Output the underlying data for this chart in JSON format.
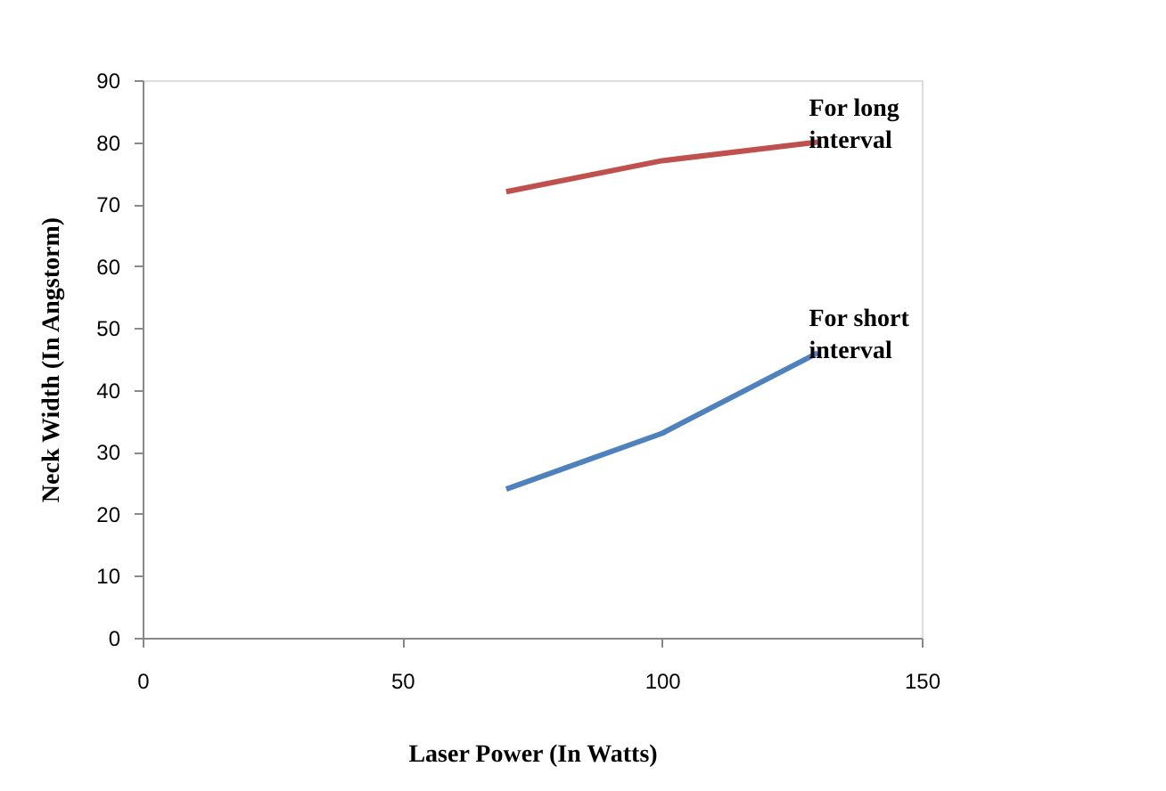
{
  "chart_data": {
    "type": "line",
    "xlabel": "Laser Power (In Watts)",
    "ylabel": "Neck Width (In Angstorm)",
    "series": [
      {
        "name": "For long interval",
        "color": "#c0504d",
        "x": [
          70,
          100,
          130
        ],
        "values": [
          72,
          77,
          80
        ]
      },
      {
        "name": "For short interval",
        "color": "#4f81bd",
        "x": [
          70,
          100,
          130
        ],
        "values": [
          24,
          33,
          46
        ]
      }
    ],
    "xlim": [
      0,
      150
    ],
    "xticks": [
      0,
      50,
      100,
      150
    ],
    "ylim": [
      0,
      90
    ],
    "yticks": [
      0,
      10,
      20,
      30,
      40,
      50,
      60,
      70,
      80,
      90
    ],
    "grid": false,
    "legend": false,
    "marker": "none",
    "line_style": "solid"
  }
}
